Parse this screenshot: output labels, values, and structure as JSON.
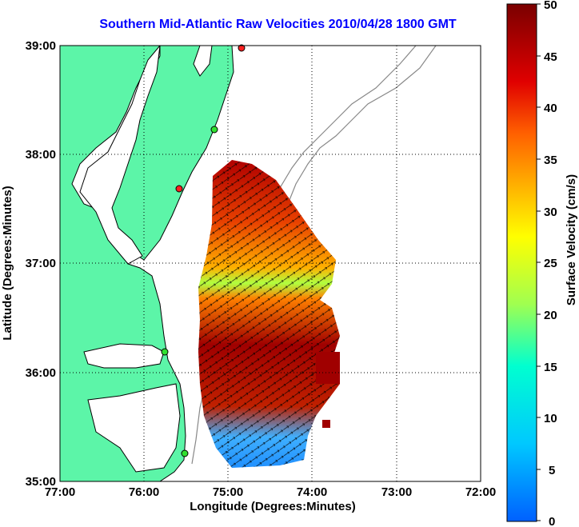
{
  "title": "Southern Mid-Atlantic Raw Velocities 2010/04/28 1800 GMT",
  "x_axis": {
    "label": "Longitude (Degrees:Minutes)",
    "ticks": [
      "77:00",
      "76:00",
      "75:00",
      "74:00",
      "73:00",
      "72:00"
    ]
  },
  "y_axis": {
    "label": "Latitude (Degrees:Minutes)",
    "ticks": [
      "39:00",
      "38:00",
      "37:00",
      "36:00",
      "35:00"
    ]
  },
  "colorbar": {
    "label": "Surface Velocity (cm/s)",
    "ticks": [
      "50",
      "45",
      "40",
      "35",
      "30",
      "25",
      "20",
      "15",
      "10",
      "5",
      "0"
    ],
    "min": 0,
    "max": 50,
    "colormap": "jet"
  },
  "map_extent": {
    "lon_west": -77,
    "lon_east": -72,
    "lat_south": 35,
    "lat_north": 39
  },
  "colors": {
    "land": "#5cf5a8",
    "coastline": "#000000",
    "bathymetry": "#888888",
    "title": "#0000ff",
    "station_red": "#ff2020",
    "station_green": "#30e030"
  }
}
